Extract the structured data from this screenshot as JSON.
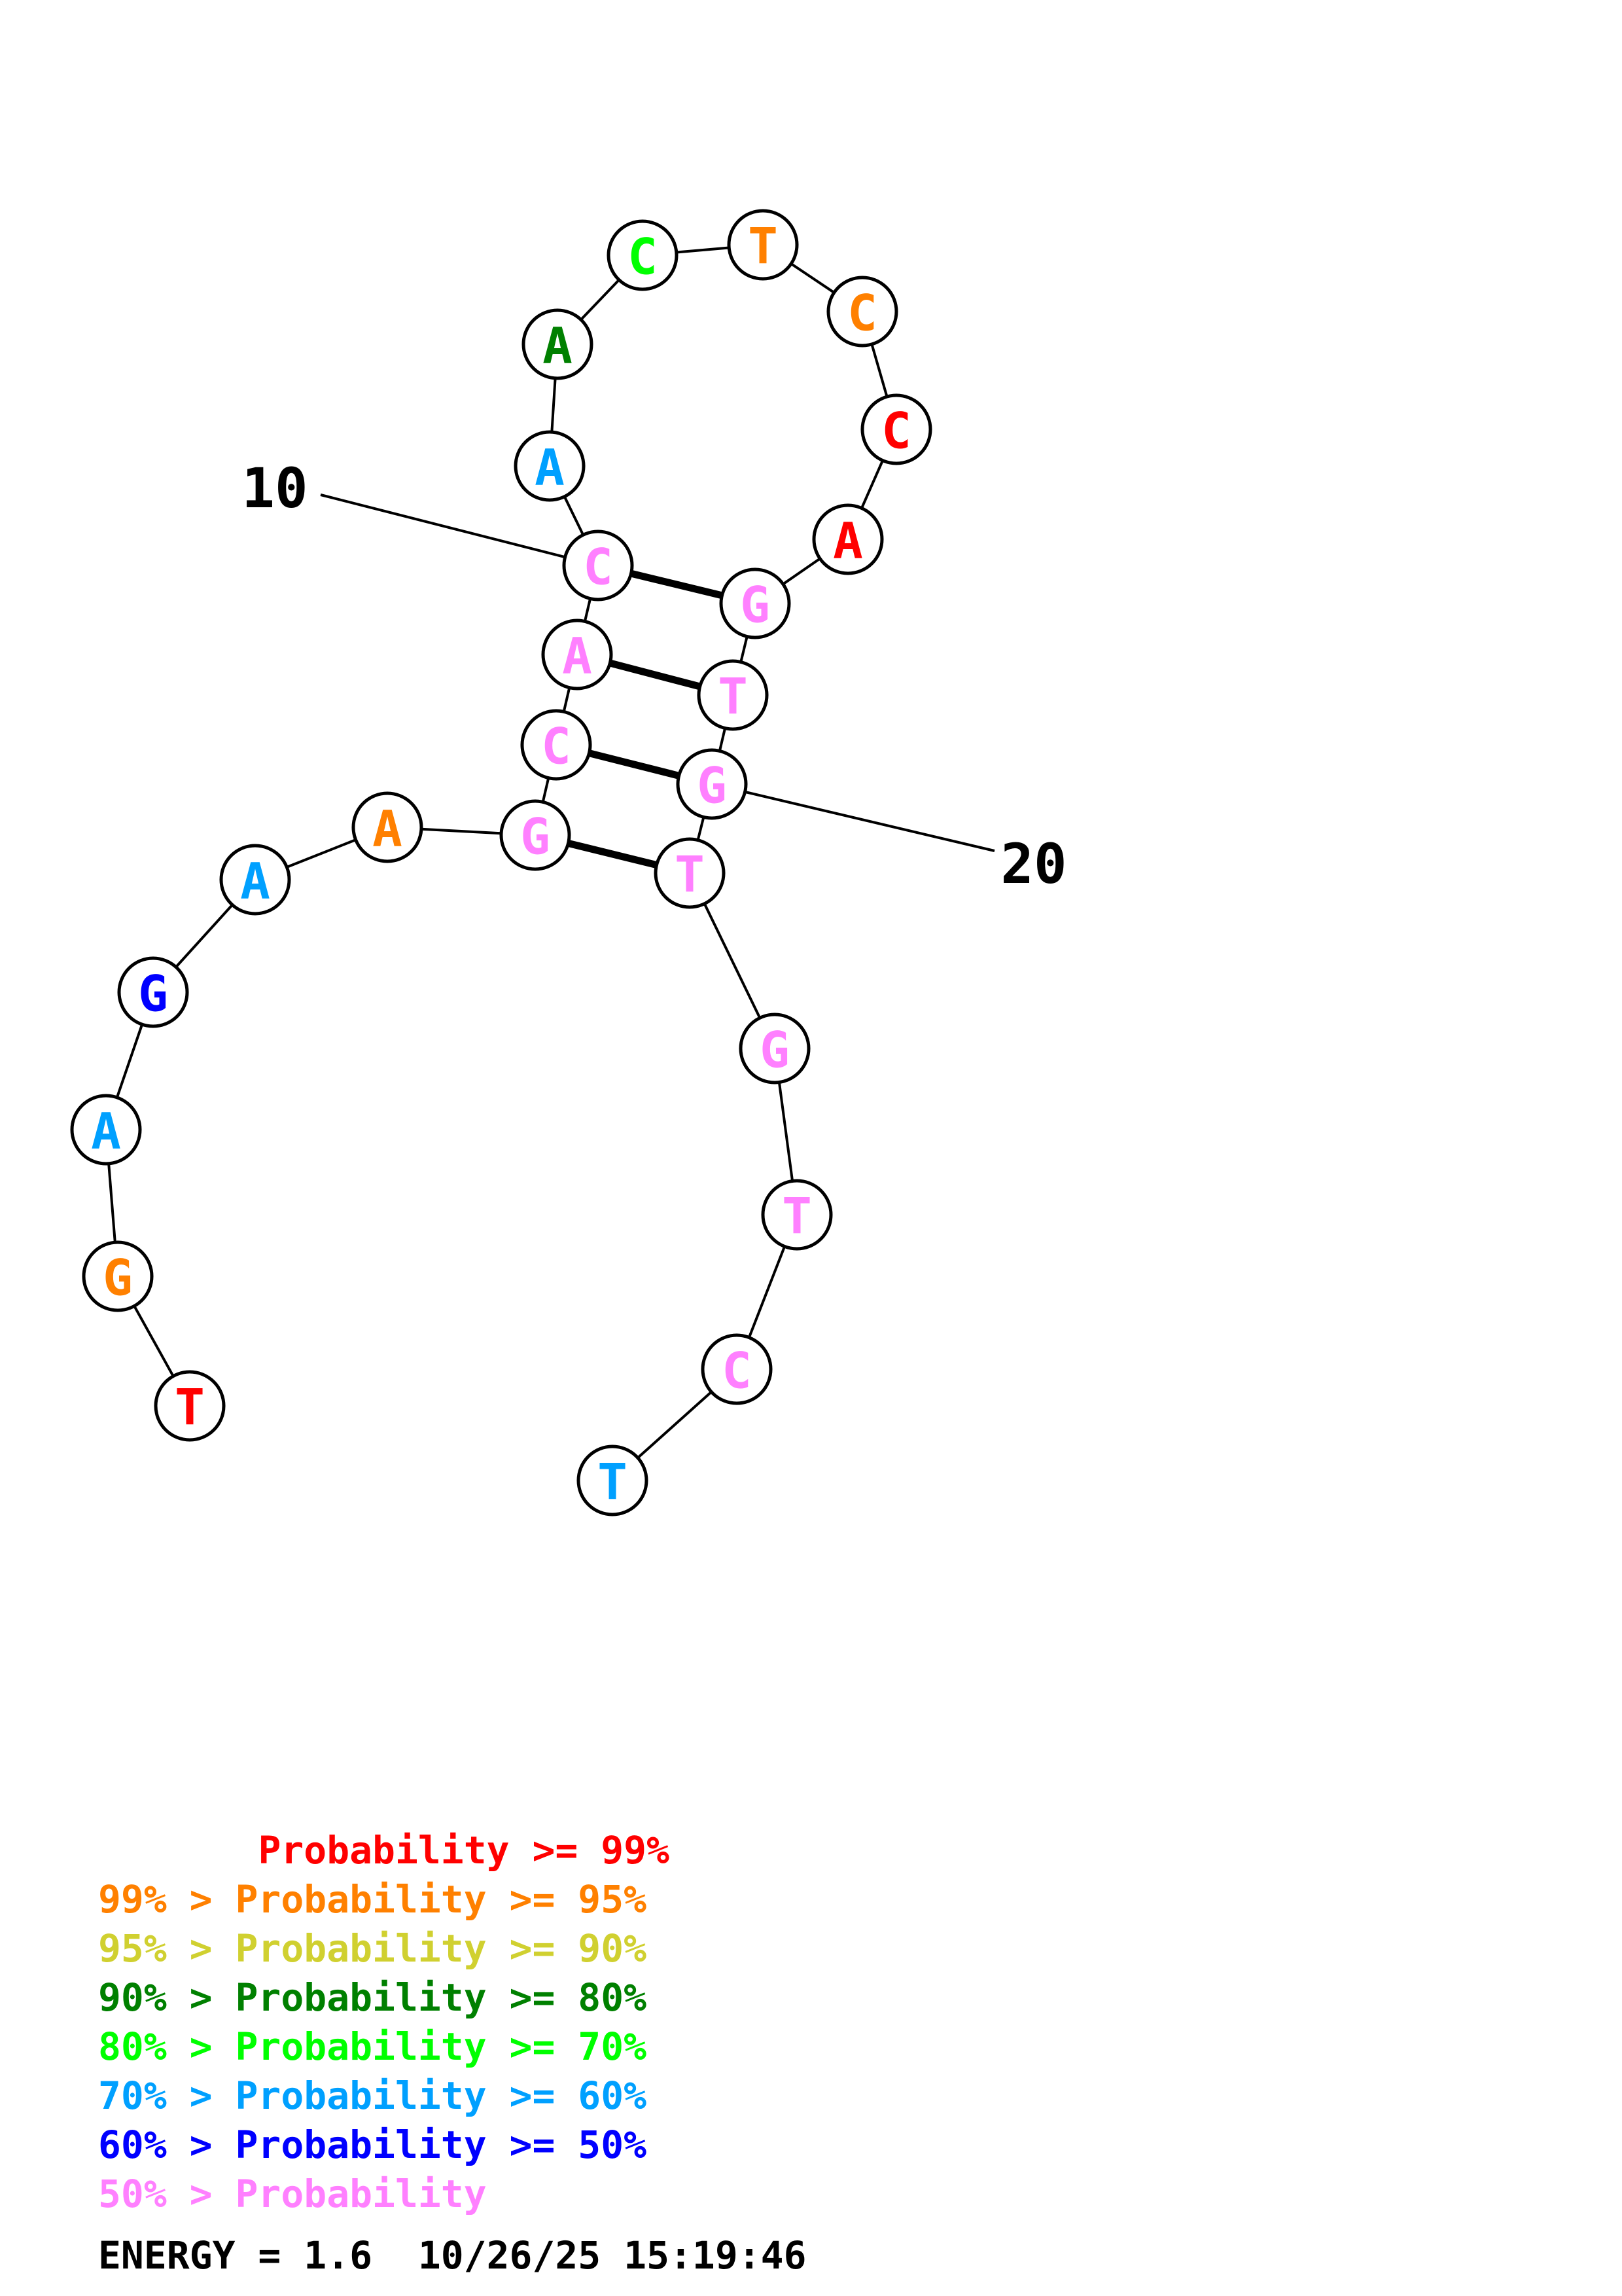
{
  "sequence": [
    {
      "n": 1,
      "base": "T",
      "color": "#ff0000"
    },
    {
      "n": 2,
      "base": "G",
      "color": "#ff8000"
    },
    {
      "n": 3,
      "base": "A",
      "color": "#00a0ff"
    },
    {
      "n": 4,
      "base": "G",
      "color": "#0000ff"
    },
    {
      "n": 5,
      "base": "A",
      "color": "#00a0ff"
    },
    {
      "n": 6,
      "base": "A",
      "color": "#ff8000"
    },
    {
      "n": 7,
      "base": "G",
      "color": "#ff80ff"
    },
    {
      "n": 8,
      "base": "C",
      "color": "#ff80ff"
    },
    {
      "n": 9,
      "base": "A",
      "color": "#ff80ff"
    },
    {
      "n": 10,
      "base": "C",
      "color": "#ff80ff"
    },
    {
      "n": 11,
      "base": "A",
      "color": "#00a0ff"
    },
    {
      "n": 12,
      "base": "A",
      "color": "#008000"
    },
    {
      "n": 13,
      "base": "C",
      "color": "#00ff00"
    },
    {
      "n": 14,
      "base": "T",
      "color": "#ff8000"
    },
    {
      "n": 15,
      "base": "C",
      "color": "#ff8000"
    },
    {
      "n": 16,
      "base": "C",
      "color": "#ff0000"
    },
    {
      "n": 17,
      "base": "A",
      "color": "#ff0000"
    },
    {
      "n": 18,
      "base": "G",
      "color": "#ff80ff"
    },
    {
      "n": 19,
      "base": "T",
      "color": "#ff80ff"
    },
    {
      "n": 20,
      "base": "G",
      "color": "#ff80ff"
    },
    {
      "n": 21,
      "base": "T",
      "color": "#ff80ff"
    },
    {
      "n": 22,
      "base": "G",
      "color": "#ff80ff"
    },
    {
      "n": 23,
      "base": "T",
      "color": "#ff80ff"
    },
    {
      "n": 24,
      "base": "C",
      "color": "#ff80ff"
    },
    {
      "n": 25,
      "base": "T",
      "color": "#00a0ff"
    }
  ],
  "pairs": [
    [
      7,
      21
    ],
    [
      8,
      20
    ],
    [
      9,
      19
    ],
    [
      10,
      18
    ]
  ],
  "tick_labels": [
    {
      "n": 10,
      "text": "10"
    },
    {
      "n": 20,
      "text": "20"
    }
  ],
  "legend": [
    {
      "prefix": "       ",
      "label": "Probability >= 99%",
      "color": "#ff0000"
    },
    {
      "prefix": "99% > ",
      "label": "Probability >= 95%",
      "color": "#ff8000"
    },
    {
      "prefix": "95% > ",
      "label": "Probability >= 90%",
      "color": "#d0d030"
    },
    {
      "prefix": "90% > ",
      "label": "Probability >= 80%",
      "color": "#008000"
    },
    {
      "prefix": "80% > ",
      "label": "Probability >= 70%",
      "color": "#00ff00"
    },
    {
      "prefix": "70% > ",
      "label": "Probability >= 60%",
      "color": "#00a0ff"
    },
    {
      "prefix": "60% > ",
      "label": "Probability >= 50%",
      "color": "#0000ff"
    },
    {
      "prefix": "50% > ",
      "label": "Probability",
      "color": "#ff80ff"
    }
  ],
  "footer": {
    "energy": "ENERGY = 1.6",
    "timestamp": "10/26/25 15:19:46"
  }
}
